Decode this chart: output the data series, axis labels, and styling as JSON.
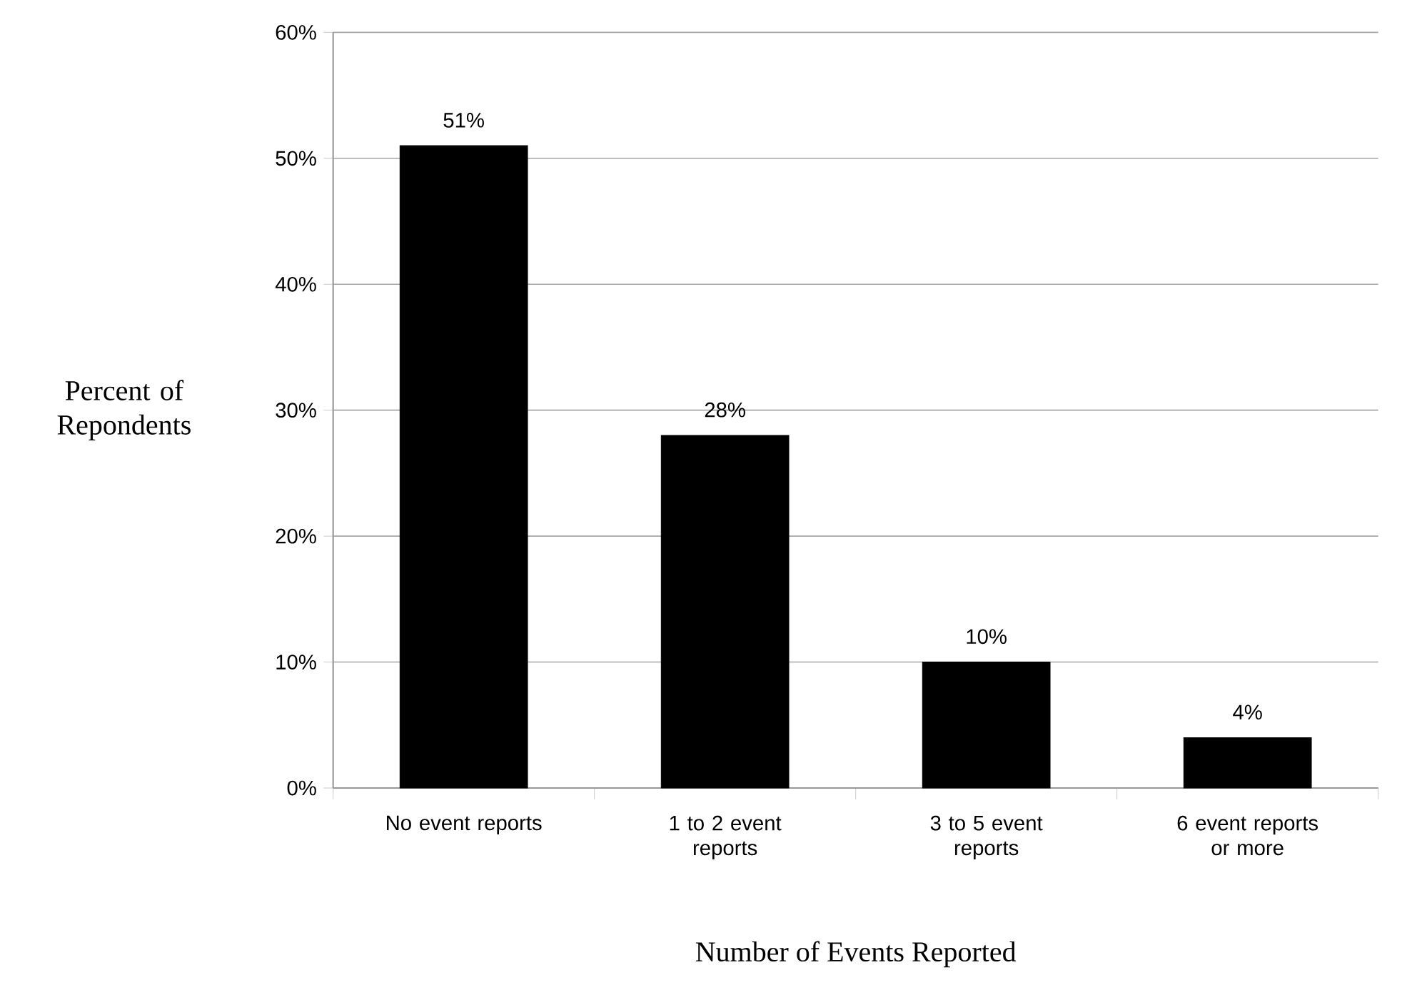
{
  "chart_data": {
    "type": "bar",
    "xlabel": "Number of Events Reported",
    "ylabel": "Percent of Repondents",
    "categories": [
      "No event reports",
      "1 to 2 event reports",
      "3 to 5 event reports",
      "6 event reports or more"
    ],
    "values": [
      51,
      28,
      10,
      4
    ],
    "value_labels": [
      "51%",
      "28%",
      "10%",
      "4%"
    ],
    "color": "#000000",
    "ylim": [
      0,
      60
    ],
    "yticks": [
      {
        "value": 0,
        "label": "0%"
      },
      {
        "value": 10,
        "label": "10%"
      },
      {
        "value": 20,
        "label": "20%"
      },
      {
        "value": 30,
        "label": "30%"
      },
      {
        "value": 40,
        "label": "40%"
      },
      {
        "value": 50,
        "label": "50%"
      },
      {
        "value": 60,
        "label": "60%"
      }
    ],
    "grid": "y"
  }
}
